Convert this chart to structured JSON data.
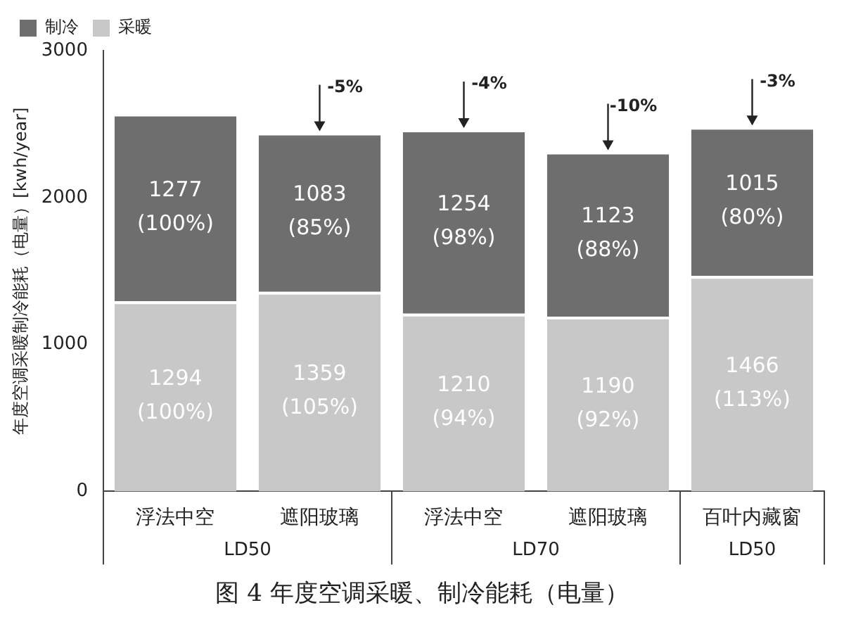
{
  "chart_data": {
    "type": "bar",
    "title": "图 4 年度空调采暖、制冷能耗（电量）",
    "ylabel": "年度空调采暖制冷能耗（电量）[kwh/year]",
    "categories": [
      "浮法中空",
      "遮阳玻璃",
      "浮法中空",
      "遮阳玻璃",
      "百叶内藏窗"
    ],
    "stacked": true,
    "series": [
      {
        "name": "采暖",
        "color": "#c8c8c8",
        "values": [
          1294,
          1359,
          1210,
          1190,
          1466
        ],
        "value_labels": [
          "1294\n(100%)",
          "1359\n(105%)",
          "1210\n(94%)",
          "1190\n(92%)",
          "1466\n(113%)"
        ]
      },
      {
        "name": "制冷",
        "color": "#6e6e6e",
        "values": [
          1277,
          1083,
          1254,
          1123,
          1015
        ],
        "value_labels": [
          "1277\n(100%)",
          "1083\n(85%)",
          "1254\n(98%)",
          "1123\n(88%)",
          "1015\n(80%)"
        ]
      }
    ],
    "ylim": [
      0,
      3000
    ],
    "yticks": [
      0,
      1000,
      2000,
      3000
    ],
    "grid": false,
    "legend": "top left",
    "annotations": [
      {
        "text": "-5%",
        "y": 2442
      },
      {
        "text": "-4%",
        "y": 2464
      },
      {
        "text": "-10%",
        "y": 2313
      },
      {
        "text": "-3%",
        "y": 2481
      },
      "LD50",
      "LD70",
      "LD50"
    ]
  }
}
